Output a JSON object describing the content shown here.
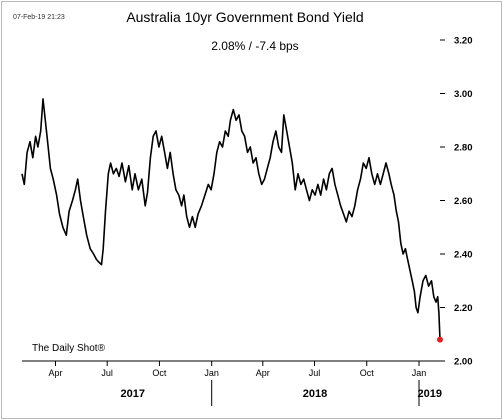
{
  "timestamp": "07-Feb-19 21:23",
  "colors": {
    "line": "#000000",
    "marker": "#e8201f",
    "axis": "#000000",
    "frame": "#b9b9b9"
  },
  "chart_data": {
    "type": "line",
    "title": "Australia 10yr Government Bond Yield",
    "subtitle": "2.08%  /  -7.4 bps",
    "source": "The Daily Shot®",
    "ylim": [
      2.0,
      3.2
    ],
    "yticks": [
      "2.00",
      "2.20",
      "2.40",
      "2.60",
      "2.80",
      "3.00",
      "3.20"
    ],
    "y_axis_position": "right",
    "grid": false,
    "xlim": [
      "2017-02-01",
      "2019-02-07"
    ],
    "xticks": [
      {
        "label": "Apr",
        "date": "2017-04-01"
      },
      {
        "label": "Jul",
        "date": "2017-07-01"
      },
      {
        "label": "Oct",
        "date": "2017-10-01"
      },
      {
        "label": "Jan",
        "date": "2018-01-01"
      },
      {
        "label": "Apr",
        "date": "2018-04-01"
      },
      {
        "label": "Jul",
        "date": "2018-07-01"
      },
      {
        "label": "Oct",
        "date": "2018-10-01"
      },
      {
        "label": "Jan",
        "date": "2019-01-01"
      }
    ],
    "year_labels": [
      {
        "label": "2017",
        "date": "2017-08-15"
      },
      {
        "label": "2018",
        "date": "2018-07-02"
      },
      {
        "label": "2019",
        "date": "2019-01-20"
      }
    ],
    "year_dividers": [
      "2018-01-01",
      "2019-01-01"
    ],
    "series": [
      {
        "points": [
          [
            "2017-02-01",
            2.7
          ],
          [
            "2017-02-05",
            2.66
          ],
          [
            "2017-02-10",
            2.78
          ],
          [
            "2017-02-15",
            2.82
          ],
          [
            "2017-02-20",
            2.76
          ],
          [
            "2017-02-25",
            2.84
          ],
          [
            "2017-03-01",
            2.8
          ],
          [
            "2017-03-06",
            2.86
          ],
          [
            "2017-03-10",
            2.98
          ],
          [
            "2017-03-14",
            2.9
          ],
          [
            "2017-03-18",
            2.82
          ],
          [
            "2017-03-23",
            2.72
          ],
          [
            "2017-03-28",
            2.68
          ],
          [
            "2017-04-03",
            2.62
          ],
          [
            "2017-04-08",
            2.55
          ],
          [
            "2017-04-14",
            2.5
          ],
          [
            "2017-04-20",
            2.47
          ],
          [
            "2017-04-25",
            2.56
          ],
          [
            "2017-05-01",
            2.6
          ],
          [
            "2017-05-06",
            2.64
          ],
          [
            "2017-05-10",
            2.68
          ],
          [
            "2017-05-15",
            2.6
          ],
          [
            "2017-05-20",
            2.54
          ],
          [
            "2017-05-26",
            2.47
          ],
          [
            "2017-06-01",
            2.42
          ],
          [
            "2017-06-07",
            2.4
          ],
          [
            "2017-06-12",
            2.38
          ],
          [
            "2017-06-16",
            2.37
          ],
          [
            "2017-06-21",
            2.36
          ],
          [
            "2017-06-24",
            2.42
          ],
          [
            "2017-06-28",
            2.56
          ],
          [
            "2017-07-03",
            2.7
          ],
          [
            "2017-07-07",
            2.74
          ],
          [
            "2017-07-12",
            2.7
          ],
          [
            "2017-07-17",
            2.72
          ],
          [
            "2017-07-22",
            2.69
          ],
          [
            "2017-07-27",
            2.74
          ],
          [
            "2017-08-02",
            2.67
          ],
          [
            "2017-08-08",
            2.73
          ],
          [
            "2017-08-14",
            2.64
          ],
          [
            "2017-08-19",
            2.7
          ],
          [
            "2017-08-25",
            2.64
          ],
          [
            "2017-08-31",
            2.68
          ],
          [
            "2017-09-06",
            2.58
          ],
          [
            "2017-09-10",
            2.63
          ],
          [
            "2017-09-15",
            2.76
          ],
          [
            "2017-09-20",
            2.84
          ],
          [
            "2017-09-25",
            2.86
          ],
          [
            "2017-09-30",
            2.8
          ],
          [
            "2017-10-05",
            2.84
          ],
          [
            "2017-10-10",
            2.78
          ],
          [
            "2017-10-15",
            2.72
          ],
          [
            "2017-10-20",
            2.78
          ],
          [
            "2017-10-25",
            2.7
          ],
          [
            "2017-10-30",
            2.64
          ],
          [
            "2017-11-04",
            2.62
          ],
          [
            "2017-11-09",
            2.58
          ],
          [
            "2017-11-13",
            2.62
          ],
          [
            "2017-11-18",
            2.54
          ],
          [
            "2017-11-23",
            2.5
          ],
          [
            "2017-11-28",
            2.54
          ],
          [
            "2017-12-03",
            2.5
          ],
          [
            "2017-12-08",
            2.55
          ],
          [
            "2017-12-14",
            2.58
          ],
          [
            "2017-12-20",
            2.62
          ],
          [
            "2017-12-26",
            2.66
          ],
          [
            "2017-12-31",
            2.64
          ],
          [
            "2018-01-05",
            2.7
          ],
          [
            "2018-01-10",
            2.78
          ],
          [
            "2018-01-15",
            2.82
          ],
          [
            "2018-01-20",
            2.8
          ],
          [
            "2018-01-25",
            2.86
          ],
          [
            "2018-01-30",
            2.84
          ],
          [
            "2018-02-03",
            2.9
          ],
          [
            "2018-02-08",
            2.94
          ],
          [
            "2018-02-13",
            2.9
          ],
          [
            "2018-02-18",
            2.92
          ],
          [
            "2018-02-23",
            2.86
          ],
          [
            "2018-02-28",
            2.84
          ],
          [
            "2018-03-05",
            2.78
          ],
          [
            "2018-03-10",
            2.8
          ],
          [
            "2018-03-15",
            2.74
          ],
          [
            "2018-03-20",
            2.76
          ],
          [
            "2018-03-25",
            2.7
          ],
          [
            "2018-03-30",
            2.66
          ],
          [
            "2018-04-04",
            2.68
          ],
          [
            "2018-04-09",
            2.72
          ],
          [
            "2018-04-14",
            2.76
          ],
          [
            "2018-04-19",
            2.82
          ],
          [
            "2018-04-24",
            2.86
          ],
          [
            "2018-04-29",
            2.8
          ],
          [
            "2018-05-04",
            2.78
          ],
          [
            "2018-05-08",
            2.92
          ],
          [
            "2018-05-13",
            2.86
          ],
          [
            "2018-05-18",
            2.8
          ],
          [
            "2018-05-23",
            2.74
          ],
          [
            "2018-05-28",
            2.64
          ],
          [
            "2018-06-02",
            2.7
          ],
          [
            "2018-06-07",
            2.66
          ],
          [
            "2018-06-12",
            2.68
          ],
          [
            "2018-06-17",
            2.64
          ],
          [
            "2018-06-22",
            2.6
          ],
          [
            "2018-06-27",
            2.64
          ],
          [
            "2018-07-02",
            2.62
          ],
          [
            "2018-07-07",
            2.66
          ],
          [
            "2018-07-12",
            2.62
          ],
          [
            "2018-07-17",
            2.68
          ],
          [
            "2018-07-22",
            2.64
          ],
          [
            "2018-07-27",
            2.7
          ],
          [
            "2018-08-01",
            2.72
          ],
          [
            "2018-08-06",
            2.66
          ],
          [
            "2018-08-11",
            2.62
          ],
          [
            "2018-08-16",
            2.58
          ],
          [
            "2018-08-21",
            2.55
          ],
          [
            "2018-08-26",
            2.52
          ],
          [
            "2018-08-31",
            2.56
          ],
          [
            "2018-09-05",
            2.54
          ],
          [
            "2018-09-10",
            2.58
          ],
          [
            "2018-09-15",
            2.64
          ],
          [
            "2018-09-20",
            2.68
          ],
          [
            "2018-09-25",
            2.74
          ],
          [
            "2018-09-30",
            2.72
          ],
          [
            "2018-10-05",
            2.76
          ],
          [
            "2018-10-10",
            2.7
          ],
          [
            "2018-10-15",
            2.66
          ],
          [
            "2018-10-20",
            2.7
          ],
          [
            "2018-10-25",
            2.66
          ],
          [
            "2018-10-30",
            2.7
          ],
          [
            "2018-11-04",
            2.74
          ],
          [
            "2018-11-09",
            2.7
          ],
          [
            "2018-11-13",
            2.66
          ],
          [
            "2018-11-18",
            2.62
          ],
          [
            "2018-11-22",
            2.56
          ],
          [
            "2018-11-26",
            2.52
          ],
          [
            "2018-11-30",
            2.44
          ],
          [
            "2018-12-04",
            2.4
          ],
          [
            "2018-12-08",
            2.42
          ],
          [
            "2018-12-12",
            2.38
          ],
          [
            "2018-12-16",
            2.34
          ],
          [
            "2018-12-20",
            2.3
          ],
          [
            "2018-12-24",
            2.26
          ],
          [
            "2018-12-27",
            2.2
          ],
          [
            "2018-12-30",
            2.18
          ],
          [
            "2019-01-03",
            2.24
          ],
          [
            "2019-01-08",
            2.3
          ],
          [
            "2019-01-13",
            2.32
          ],
          [
            "2019-01-18",
            2.28
          ],
          [
            "2019-01-23",
            2.3
          ],
          [
            "2019-01-27",
            2.24
          ],
          [
            "2019-01-31",
            2.22
          ],
          [
            "2019-02-03",
            2.24
          ],
          [
            "2019-02-05",
            2.18
          ],
          [
            "2019-02-07",
            2.08
          ]
        ]
      }
    ],
    "last_point": {
      "date": "2019-02-07",
      "value": 2.08
    }
  }
}
